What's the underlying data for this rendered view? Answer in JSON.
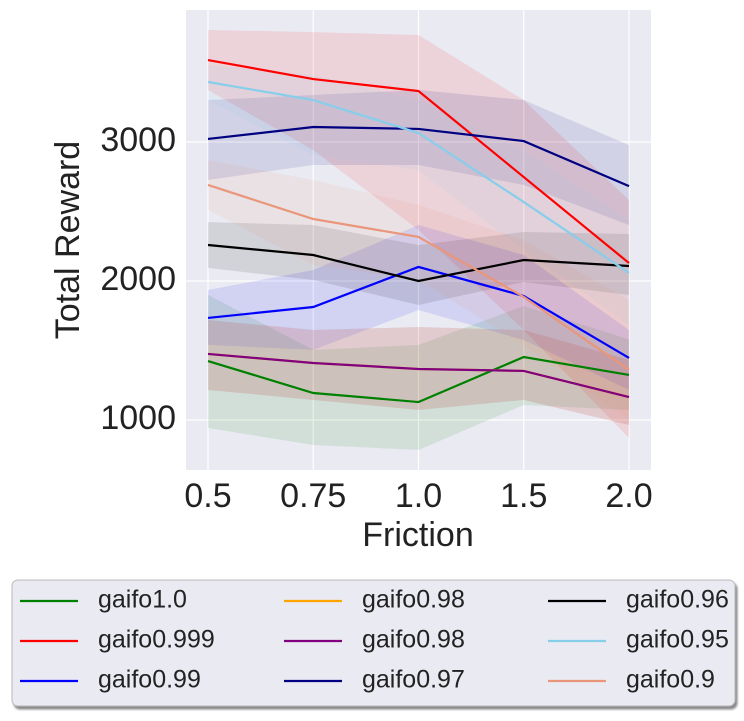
{
  "chart_data": {
    "type": "line",
    "xlabel": "Friction",
    "ylabel": "Total Reward",
    "categories": [
      "0.5",
      "0.75",
      "1.0",
      "1.5",
      "2.0"
    ],
    "ylim": [
      640,
      3950
    ],
    "yticks": [
      1000,
      2000,
      3000
    ],
    "grid": true,
    "legend": "below",
    "series": [
      {
        "name": "gaifo1.0",
        "color": "#008000",
        "values": [
          1424,
          1194,
          1129,
          1453,
          1324
        ],
        "lower": [
          942,
          820,
          784,
          1108,
          1072
        ],
        "upper": [
          1900,
          1504,
          1540,
          1820,
          1580
        ]
      },
      {
        "name": "gaifo0.999",
        "color": "#ff0000",
        "values": [
          3590,
          3453,
          3367,
          2748,
          2129
        ],
        "lower": [
          3374,
          2942,
          2367,
          1647,
          870
        ],
        "upper": [
          3806,
          3791,
          3770,
          3302,
          2583
        ]
      },
      {
        "name": "gaifo0.99",
        "color": "#0000ff",
        "values": [
          1734,
          1813,
          2101,
          1892,
          1446
        ],
        "lower": [
          1540,
          1504,
          1791,
          1575,
          1216
        ],
        "upper": [
          1935,
          2079,
          2403,
          2187,
          1647
        ]
      },
      {
        "name": "gaifo0.98",
        "color": "#ffa500",
        "values": [
          1475,
          1410,
          1367,
          1353,
          1165
        ],
        "lower": [
          1216,
          1144,
          1072,
          1144,
          964
        ],
        "upper": [
          1719,
          1647,
          1669,
          1647,
          1432
        ]
      },
      {
        "name": "gaifo0.98",
        "color": "#800080",
        "values": [
          1475,
          1410,
          1367,
          1353,
          1165
        ],
        "lower": [
          1216,
          1144,
          1072,
          1144,
          964
        ],
        "upper": [
          1719,
          1647,
          1669,
          1647,
          1432
        ]
      },
      {
        "name": "gaifo0.97",
        "color": "#000080",
        "values": [
          3022,
          3108,
          3094,
          3007,
          2683
        ],
        "lower": [
          2727,
          2835,
          2835,
          2691,
          2403
        ],
        "upper": [
          3302,
          3338,
          3374,
          3302,
          2978
        ]
      },
      {
        "name": "gaifo0.96",
        "color": "#000000",
        "values": [
          2259,
          2187,
          2000,
          2151,
          2108
        ],
        "lower": [
          2094,
          2007,
          1827,
          1993,
          1899
        ],
        "upper": [
          2424,
          2403,
          2259,
          2353,
          2338
        ]
      },
      {
        "name": "gaifo0.95",
        "color": "#87ceeb",
        "values": [
          3432,
          3302,
          3065,
          2568,
          2058
        ],
        "lower": [
          3302,
          2906,
          2798,
          2223,
          1683
        ],
        "upper": [
          3554,
          3482,
          3302,
          2942,
          2439
        ]
      },
      {
        "name": "gaifo0.9",
        "color": "#e9967a",
        "values": [
          2691,
          2446,
          2317,
          1885,
          1360
        ],
        "lower": [
          2511,
          2115,
          2007,
          1540,
          1000
        ],
        "upper": [
          2871,
          2727,
          2547,
          2295,
          1863
        ]
      }
    ]
  }
}
